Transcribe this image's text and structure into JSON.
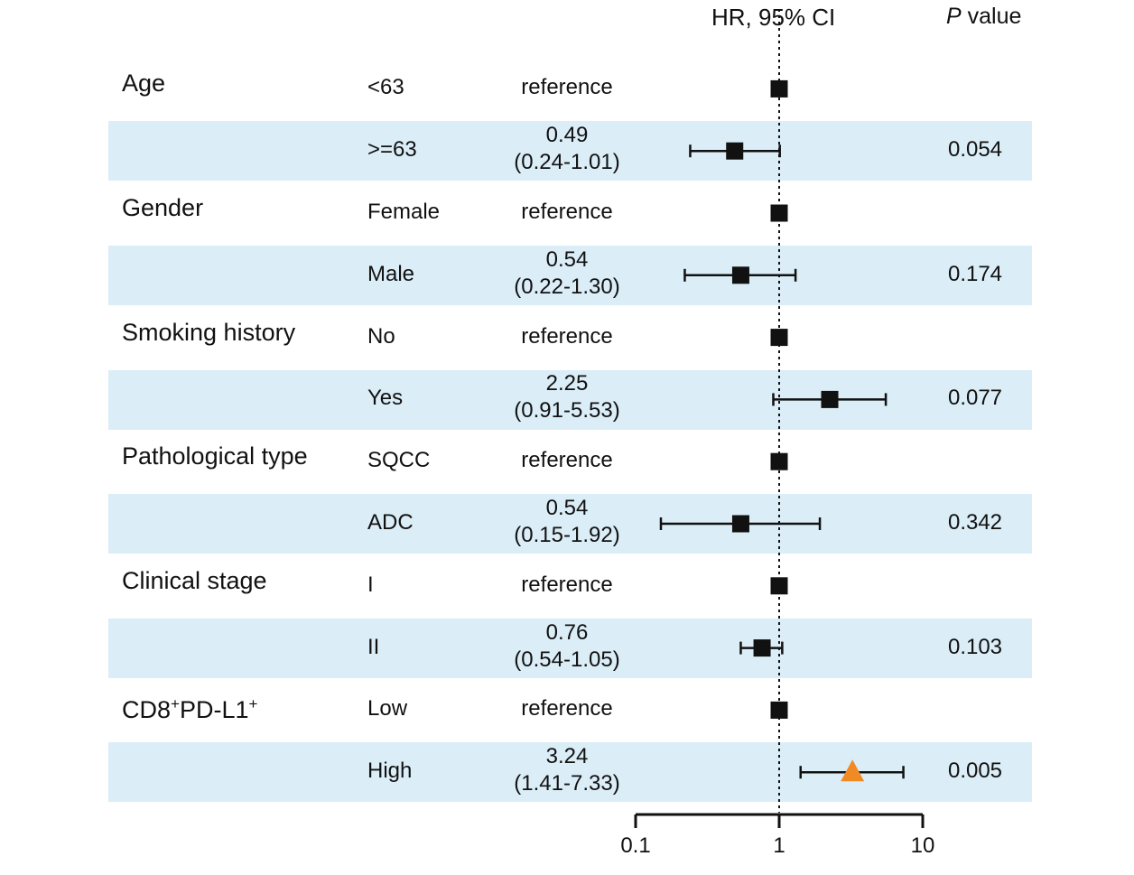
{
  "header": {
    "hr_label": "HR, 95% CI",
    "p_italic": "P",
    "p_rest": " value"
  },
  "colors": {
    "row_shade": "#dbedf7",
    "marker": "#111111",
    "highlight_marker": "#f08a24"
  },
  "rows": [
    {
      "variable": "Age",
      "level": "<63",
      "hr_line1": "reference",
      "hr_line2": "",
      "p": "",
      "shaded": false
    },
    {
      "variable": "",
      "level": ">=63",
      "hr_line1": "0.49",
      "hr_line2": "(0.24-1.01)",
      "p": "0.054",
      "shaded": true
    },
    {
      "variable": "Gender",
      "level": "Female",
      "hr_line1": "reference",
      "hr_line2": "",
      "p": "",
      "shaded": false
    },
    {
      "variable": "",
      "level": "Male",
      "hr_line1": "0.54",
      "hr_line2": "(0.22-1.30)",
      "p": "0.174",
      "shaded": true
    },
    {
      "variable": "Smoking history",
      "level": "No",
      "hr_line1": "reference",
      "hr_line2": "",
      "p": "",
      "shaded": false
    },
    {
      "variable": "",
      "level": "Yes",
      "hr_line1": "2.25",
      "hr_line2": "(0.91-5.53)",
      "p": "0.077",
      "shaded": true
    },
    {
      "variable": "Pathological type",
      "level": "SQCC",
      "hr_line1": "reference",
      "hr_line2": "",
      "p": "",
      "shaded": false
    },
    {
      "variable": "",
      "level": "ADC",
      "hr_line1": "0.54",
      "hr_line2": "(0.15-1.92)",
      "p": "0.342",
      "shaded": true
    },
    {
      "variable": "Clinical stage",
      "level": "I",
      "hr_line1": "reference",
      "hr_line2": "",
      "p": "",
      "shaded": false
    },
    {
      "variable": "",
      "level": "II",
      "hr_line1": "0.76",
      "hr_line2": "(0.54-1.05)",
      "p": "0.103",
      "shaded": true
    },
    {
      "variable": "CD8⁺PD-L1⁺",
      "level": "Low",
      "hr_line1": "reference",
      "hr_line2": "",
      "p": "",
      "shaded": false
    },
    {
      "variable": "",
      "level": "High",
      "hr_line1": "3.24",
      "hr_line2": "(1.41-7.33)",
      "p": "0.005",
      "shaded": true
    }
  ],
  "chart_data": {
    "type": "scatter",
    "subtype": "forest-plot",
    "x_scale": "log",
    "xlim": [
      0.1,
      10
    ],
    "xticks": [
      "0.1",
      "1",
      "10"
    ],
    "reference_line": 1,
    "points": [
      {
        "category": "<63",
        "hr": 1,
        "lo": null,
        "hi": null,
        "marker": "square"
      },
      {
        "category": ">=63",
        "hr": 0.49,
        "lo": 0.24,
        "hi": 1.01,
        "marker": "square"
      },
      {
        "category": "Female",
        "hr": 1,
        "lo": null,
        "hi": null,
        "marker": "square"
      },
      {
        "category": "Male",
        "hr": 0.54,
        "lo": 0.22,
        "hi": 1.3,
        "marker": "square"
      },
      {
        "category": "No",
        "hr": 1,
        "lo": null,
        "hi": null,
        "marker": "square"
      },
      {
        "category": "Yes",
        "hr": 2.25,
        "lo": 0.91,
        "hi": 5.53,
        "marker": "square"
      },
      {
        "category": "SQCC",
        "hr": 1,
        "lo": null,
        "hi": null,
        "marker": "square"
      },
      {
        "category": "ADC",
        "hr": 0.54,
        "lo": 0.15,
        "hi": 1.92,
        "marker": "square"
      },
      {
        "category": "I",
        "hr": 1,
        "lo": null,
        "hi": null,
        "marker": "square"
      },
      {
        "category": "II",
        "hr": 0.76,
        "lo": 0.54,
        "hi": 1.05,
        "marker": "square"
      },
      {
        "category": "Low",
        "hr": 1,
        "lo": null,
        "hi": null,
        "marker": "square"
      },
      {
        "category": "High",
        "hr": 3.24,
        "lo": 1.41,
        "hi": 7.33,
        "marker": "triangle"
      }
    ]
  }
}
